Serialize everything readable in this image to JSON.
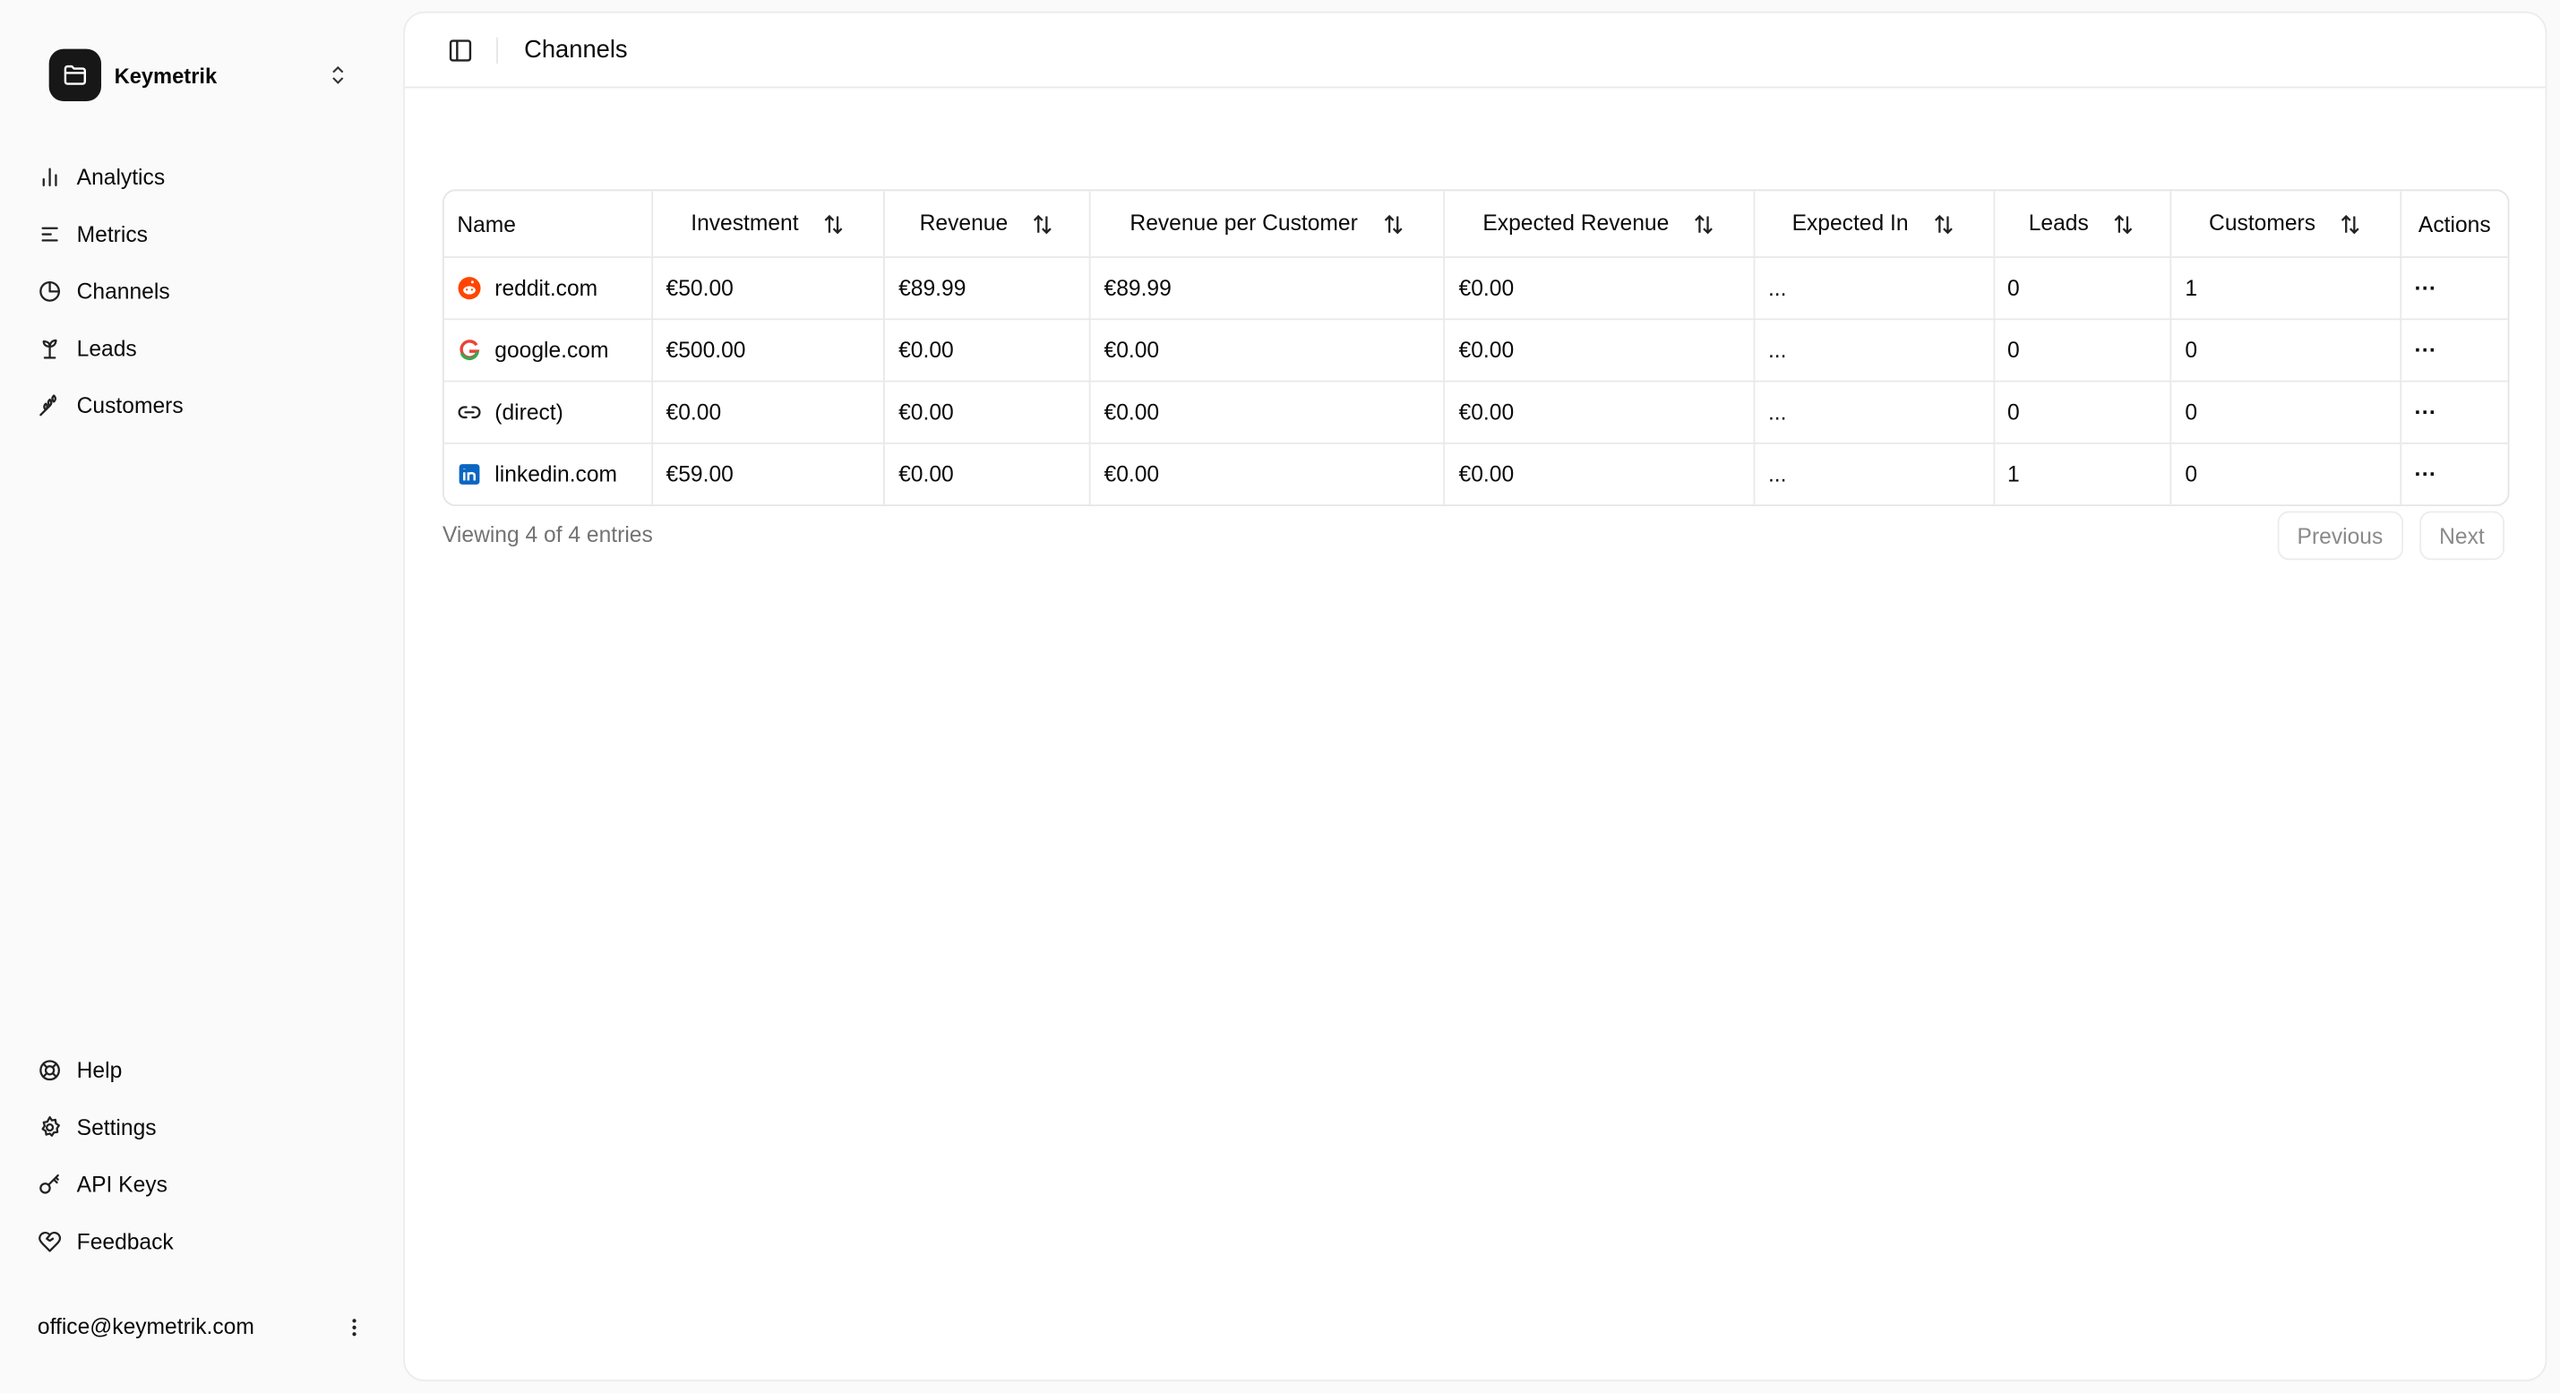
{
  "workspace": {
    "name": "Keymetrik",
    "logo_icon": "folder-icon",
    "switch_icon": "chevrons-up-down-icon"
  },
  "sidebar": {
    "primary": [
      {
        "label": "Analytics",
        "icon": "bar-chart-icon"
      },
      {
        "label": "Metrics",
        "icon": "list-icon"
      },
      {
        "label": "Channels",
        "icon": "pie-chart-icon"
      },
      {
        "label": "Leads",
        "icon": "sprout-icon"
      },
      {
        "label": "Customers",
        "icon": "wheat-icon"
      }
    ],
    "secondary": [
      {
        "label": "Help",
        "icon": "life-buoy-icon"
      },
      {
        "label": "Settings",
        "icon": "gear-icon"
      },
      {
        "label": "API Keys",
        "icon": "key-icon"
      },
      {
        "label": "Feedback",
        "icon": "heart-handshake-icon"
      }
    ],
    "user_email": "office@keymetrik.com"
  },
  "header": {
    "title": "Channels"
  },
  "table": {
    "columns": [
      "Name",
      "Investment",
      "Revenue",
      "Revenue per Customer",
      "Expected Revenue",
      "Expected In",
      "Leads",
      "Customers",
      "Actions"
    ],
    "sortable": [
      false,
      true,
      true,
      true,
      true,
      true,
      true,
      true,
      false
    ],
    "rows": [
      {
        "name": "reddit.com",
        "icon": "reddit-icon",
        "cells": [
          "€50.00",
          "€89.99",
          "€89.99",
          "€0.00",
          "...",
          "0",
          "1"
        ]
      },
      {
        "name": "google.com",
        "icon": "google-icon",
        "cells": [
          "€500.00",
          "€0.00",
          "€0.00",
          "€0.00",
          "...",
          "0",
          "0"
        ]
      },
      {
        "name": "(direct)",
        "icon": "link-icon",
        "cells": [
          "€0.00",
          "€0.00",
          "€0.00",
          "€0.00",
          "...",
          "0",
          "0"
        ]
      },
      {
        "name": "linkedin.com",
        "icon": "linkedin-icon",
        "cells": [
          "€59.00",
          "€0.00",
          "€0.00",
          "€0.00",
          "...",
          "1",
          "0"
        ]
      }
    ],
    "actions_label": "···"
  },
  "pagination": {
    "summary": "Viewing 4 of 4 entries",
    "previous": "Previous",
    "next": "Next"
  },
  "colors": {
    "reddit": "#ff4500",
    "linkedin": "#0a66c2",
    "sidebar_bg": "#fafafa",
    "brand_logo_bg": "#171717"
  }
}
